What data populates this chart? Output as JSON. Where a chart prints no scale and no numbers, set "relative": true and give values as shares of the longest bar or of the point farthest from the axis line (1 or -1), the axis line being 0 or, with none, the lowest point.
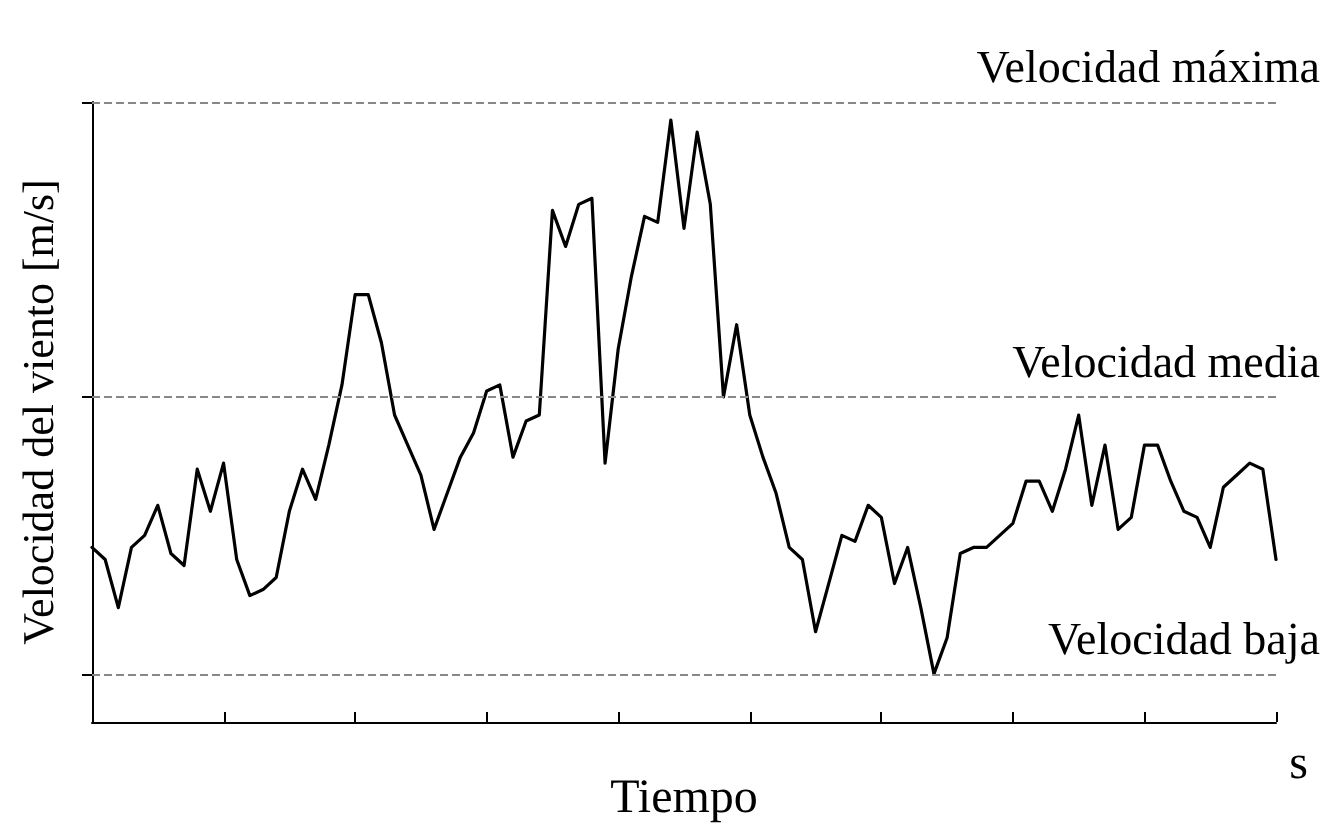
{
  "chart_data": {
    "type": "line",
    "relative": true,
    "xlabel": "Tiempo",
    "ylabel": "Velocidad del viento [m/s]",
    "annotations": [
      "s"
    ],
    "color": "#000000",
    "marker": "none",
    "line_style": "solid",
    "grid": false,
    "categories": [
      null,
      null,
      null,
      null,
      null,
      null,
      null,
      null,
      null,
      null,
      null,
      null,
      null,
      null,
      null,
      null,
      null,
      null,
      null,
      null,
      null,
      null,
      null,
      null,
      null,
      null,
      null,
      null,
      null,
      null,
      null,
      null,
      null,
      null,
      null,
      null,
      null,
      null,
      null,
      null,
      null,
      null,
      null,
      null,
      null,
      null,
      null,
      null,
      null,
      null,
      null,
      null,
      null,
      null,
      null,
      null,
      null,
      null,
      null,
      null,
      null,
      null,
      null,
      null,
      null,
      null,
      null,
      null,
      null,
      null,
      null,
      null,
      null,
      null,
      null,
      null,
      null,
      null,
      null,
      null,
      null,
      null,
      null,
      null,
      null,
      null,
      null,
      null,
      null,
      null,
      null
    ],
    "values": [
      0.29,
      0.27,
      0.19,
      0.29,
      0.31,
      0.36,
      0.28,
      0.26,
      0.42,
      0.35,
      0.43,
      0.27,
      0.21,
      0.22,
      0.24,
      0.35,
      0.42,
      0.37,
      0.46,
      0.56,
      0.71,
      0.71,
      0.63,
      0.51,
      0.46,
      0.41,
      0.32,
      0.38,
      0.44,
      0.48,
      0.55,
      0.56,
      0.44,
      0.5,
      0.51,
      0.85,
      0.79,
      0.86,
      0.87,
      0.43,
      0.62,
      0.74,
      0.84,
      0.83,
      1.0,
      0.82,
      0.98,
      0.86,
      0.54,
      0.66,
      0.51,
      0.44,
      0.38,
      0.29,
      0.27,
      0.15,
      0.23,
      0.31,
      0.3,
      0.36,
      0.34,
      0.23,
      0.29,
      0.19,
      0.08,
      0.14,
      0.28,
      0.29,
      0.29,
      0.31,
      0.33,
      0.4,
      0.4,
      0.35,
      0.42,
      0.51,
      0.36,
      0.46,
      0.32,
      0.34,
      0.46,
      0.46,
      0.4,
      0.35,
      0.34,
      0.29,
      0.39,
      0.41,
      0.43,
      0.42,
      0.27
    ],
    "ref_lines": [
      {
        "axis": "y",
        "value": 1.03,
        "label": "Velocidad máxima",
        "color": "#888888",
        "line_style": "dashed"
      },
      {
        "axis": "y",
        "value": 0.54,
        "label": "Velocidad media",
        "color": "#888888",
        "line_style": "dashed"
      },
      {
        "axis": "y",
        "value": 0.08,
        "label": "Velocidad baja",
        "color": "#888888",
        "line_style": "dashed"
      }
    ]
  }
}
